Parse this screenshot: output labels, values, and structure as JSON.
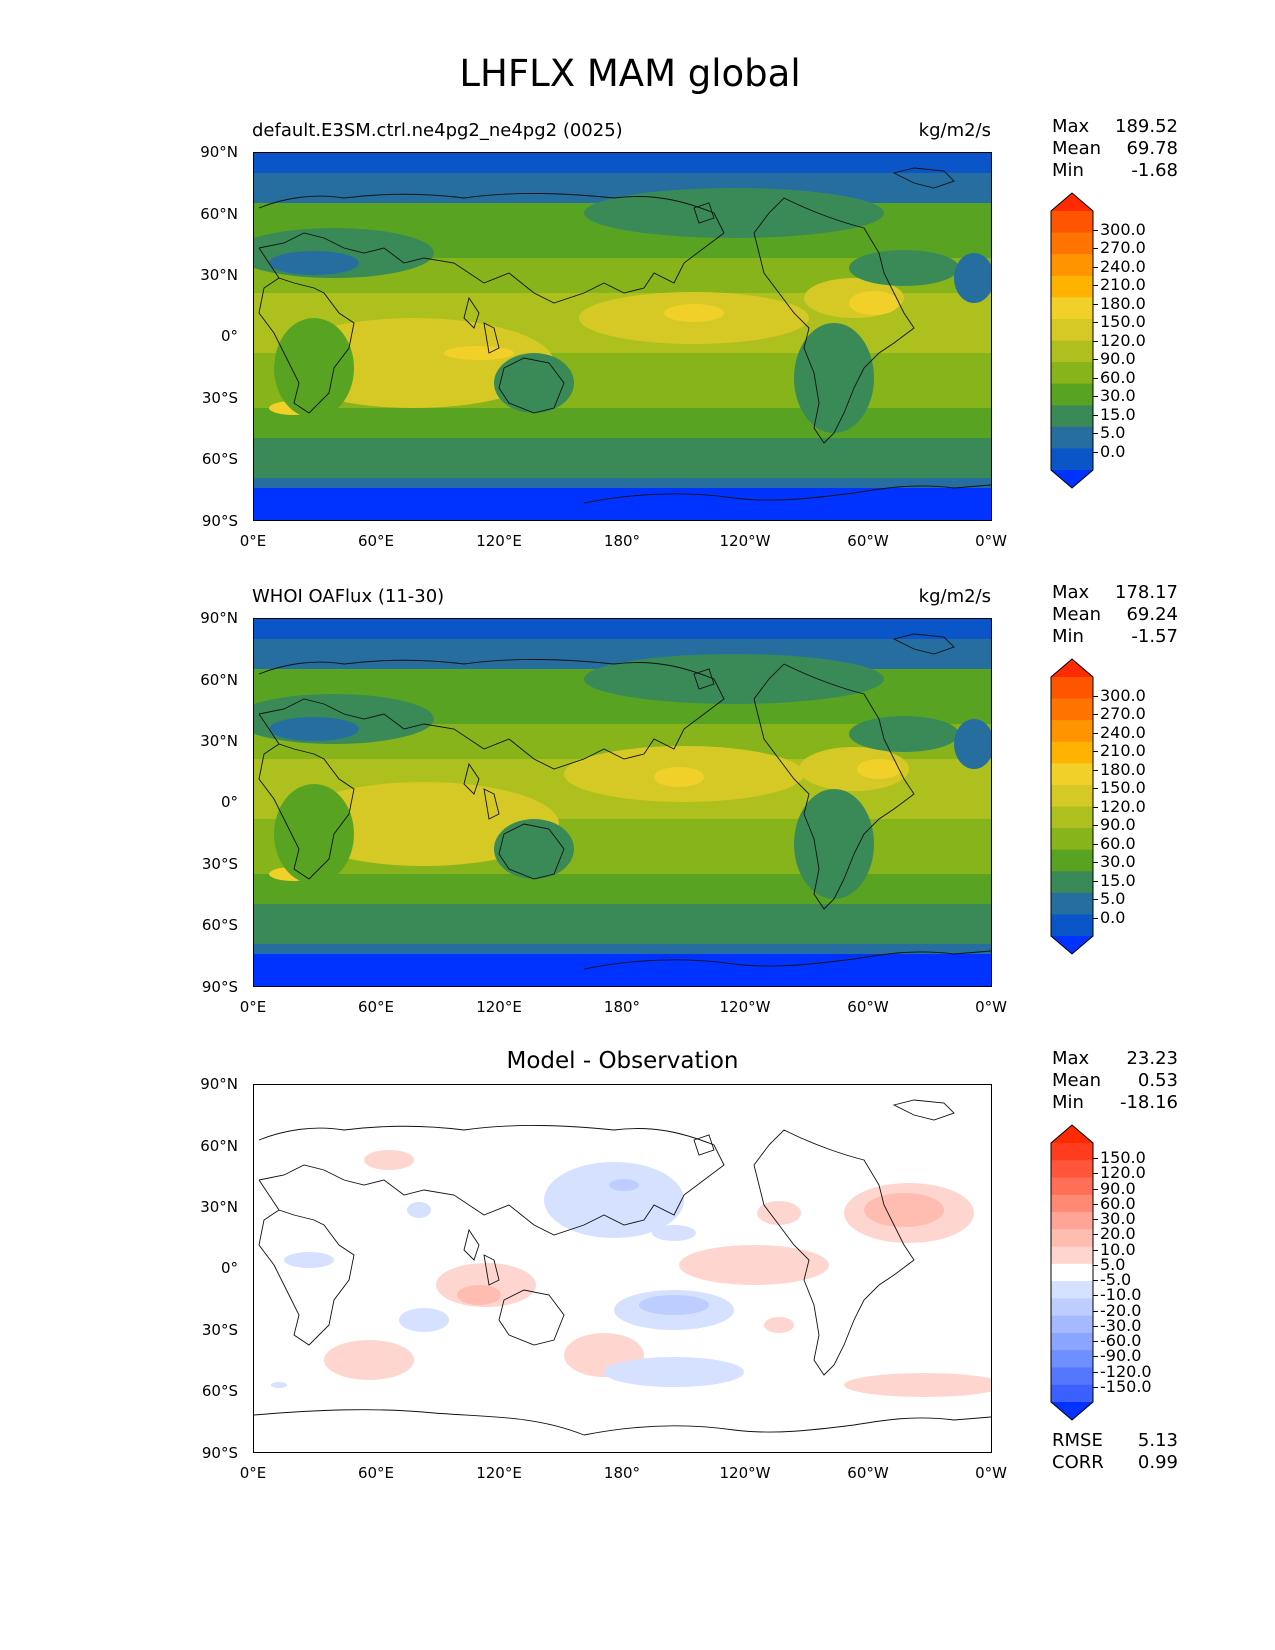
{
  "figure": {
    "title": "LHFLX MAM global"
  },
  "axes": {
    "lat_ticks": [
      "90°N",
      "60°N",
      "30°N",
      "0°",
      "30°S",
      "60°S",
      "90°S"
    ],
    "lon_ticks": [
      "0°E",
      "60°E",
      "120°E",
      "180°",
      "120°W",
      "60°W",
      "0°W"
    ]
  },
  "panels": [
    {
      "title_left": "default.E3SM.ctrl.ne4pg2_ne4pg2 (0025)",
      "title_right": "kg/m2/s",
      "stats": [
        {
          "label": "Max",
          "value": "189.52"
        },
        {
          "label": "Mean",
          "value": "69.78"
        },
        {
          "label": "Min",
          "value": "-1.68"
        }
      ],
      "colorbar": {
        "levels": [
          "300.0",
          "270.0",
          "240.0",
          "210.0",
          "180.0",
          "150.0",
          "120.0",
          "90.0",
          "60.0",
          "30.0",
          "15.0",
          "5.0",
          "0.0"
        ],
        "colors": [
          "#ff2a00",
          "#ff5500",
          "#ff7400",
          "#ff9300",
          "#ffb300",
          "#f2d02a",
          "#d6c925",
          "#adc01e",
          "#87b41a",
          "#58a422",
          "#3a8a58",
          "#266ea0",
          "#0a55c8",
          "#0033ff"
        ]
      }
    },
    {
      "title_left": "WHOI OAFlux (11-30)",
      "title_right": "kg/m2/s",
      "stats": [
        {
          "label": "Max",
          "value": "178.17"
        },
        {
          "label": "Mean",
          "value": "69.24"
        },
        {
          "label": "Min",
          "value": "-1.57"
        }
      ],
      "colorbar": {
        "levels": [
          "300.0",
          "270.0",
          "240.0",
          "210.0",
          "180.0",
          "150.0",
          "120.0",
          "90.0",
          "60.0",
          "30.0",
          "15.0",
          "5.0",
          "0.0"
        ],
        "colors": [
          "#ff2a00",
          "#ff5500",
          "#ff7400",
          "#ff9300",
          "#ffb300",
          "#f2d02a",
          "#d6c925",
          "#adc01e",
          "#87b41a",
          "#58a422",
          "#3a8a58",
          "#266ea0",
          "#0a55c8",
          "#0033ff"
        ]
      }
    },
    {
      "title_center": "Model - Observation",
      "stats": [
        {
          "label": "Max",
          "value": "23.23"
        },
        {
          "label": "Mean",
          "value": "0.53"
        },
        {
          "label": "Min",
          "value": "-18.16"
        }
      ],
      "colorbar": {
        "levels": [
          "150.0",
          "120.0",
          "90.0",
          "60.0",
          "30.0",
          "20.0",
          "10.0",
          "5.0",
          "-5.0",
          "-10.0",
          "-20.0",
          "-30.0",
          "-60.0",
          "-90.0",
          "-120.0",
          "-150.0"
        ],
        "colors": [
          "#ff2a00",
          "#ff3c1e",
          "#ff553a",
          "#ff6e56",
          "#ff8a74",
          "#ffa496",
          "#ffbdb2",
          "#ffd6cf",
          "#ffffff",
          "#d6e0ff",
          "#bdcdff",
          "#a4b9ff",
          "#8aa6ff",
          "#6e8fff",
          "#5577ff",
          "#3c60ff",
          "#0033ff"
        ]
      },
      "metrics": [
        {
          "label": "RMSE",
          "value": "5.13"
        },
        {
          "label": "CORR",
          "value": "0.99"
        }
      ]
    }
  ]
}
